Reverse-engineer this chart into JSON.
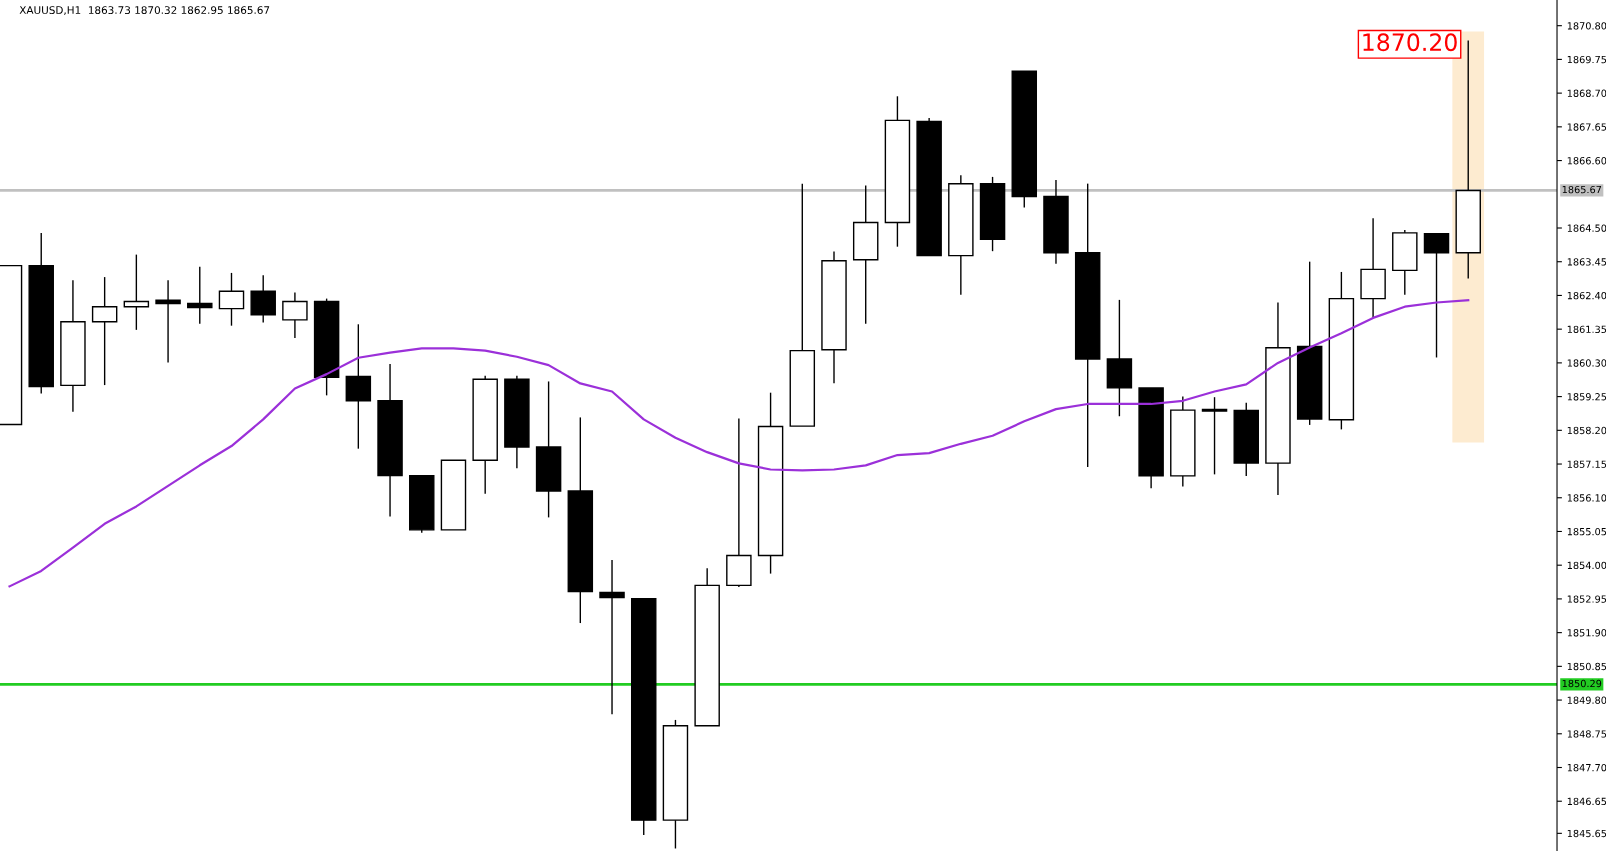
{
  "chart_data": {
    "type": "candlestick",
    "title": "XAUUSD,H1  1863.73 1870.32 1862.95 1865.67",
    "categories": [
      null,
      null,
      null,
      null,
      null,
      null,
      null,
      null,
      null,
      null,
      null,
      null,
      null,
      null,
      null,
      null,
      null,
      null,
      null,
      null,
      null,
      null,
      null,
      null,
      null,
      null,
      null,
      null,
      null,
      null,
      null,
      null,
      null,
      null,
      null,
      null,
      null,
      null,
      null,
      null,
      null,
      null,
      null,
      null,
      null,
      null,
      null
    ],
    "ohlc": [
      [
        1858.38,
        1863.33,
        1858.38,
        1863.33
      ],
      [
        1863.33,
        1864.32,
        1859.37,
        1859.56
      ],
      [
        1859.6,
        1862.85,
        1858.8,
        1861.58
      ],
      [
        1861.58,
        1862.95,
        1859.63,
        1862.05
      ],
      [
        1862.05,
        1863.65,
        1861.35,
        1862.21
      ],
      [
        1862.25,
        1862.85,
        1860.33,
        1862.15
      ],
      [
        1862.15,
        1863.27,
        1861.54,
        1862.02
      ],
      [
        1861.99,
        1863.08,
        1861.48,
        1862.53
      ],
      [
        1862.53,
        1863.01,
        1861.58,
        1861.8
      ],
      [
        1861.64,
        1862.47,
        1861.1,
        1862.21
      ],
      [
        1862.21,
        1862.28,
        1859.31,
        1859.85
      ],
      [
        1859.88,
        1861.48,
        1857.65,
        1859.12
      ],
      [
        1859.12,
        1860.24,
        1855.54,
        1856.79
      ],
      [
        1856.79,
        1856.79,
        1855.03,
        1855.1
      ],
      [
        1855.1,
        1857.27,
        1855.1,
        1857.27
      ],
      [
        1857.27,
        1859.88,
        1856.25,
        1859.79
      ],
      [
        1859.79,
        1859.88,
        1857.04,
        1857.68
      ],
      [
        1857.68,
        1859.7,
        1855.51,
        1856.31
      ],
      [
        1856.31,
        1858.58,
        1852.22,
        1853.18
      ],
      [
        1853.15,
        1854.14,
        1849.38,
        1852.99
      ],
      [
        1852.96,
        1852.96,
        1845.62,
        1846.06
      ],
      [
        1846.06,
        1849.16,
        1845.2,
        1849.0
      ],
      [
        1849.0,
        1853.88,
        1849.0,
        1853.37
      ],
      [
        1853.37,
        1858.55,
        1853.34,
        1854.3
      ],
      [
        1854.3,
        1859.35,
        1853.76,
        1858.32
      ],
      [
        1858.33,
        1865.86,
        1858.33,
        1860.68
      ],
      [
        1860.71,
        1863.75,
        1859.69,
        1863.48
      ],
      [
        1863.51,
        1865.8,
        1861.54,
        1864.67
      ],
      [
        1864.67,
        1868.58,
        1863.94,
        1867.85
      ],
      [
        1867.82,
        1867.9,
        1863.64,
        1863.64
      ],
      [
        1863.64,
        1866.12,
        1862.44,
        1865.88
      ],
      [
        1865.88,
        1866.07,
        1863.8,
        1864.15
      ],
      [
        1869.38,
        1869.38,
        1865.16,
        1865.48
      ],
      [
        1865.48,
        1865.97,
        1863.41,
        1863.73
      ],
      [
        1863.73,
        1865.86,
        1857.08,
        1860.42
      ],
      [
        1860.42,
        1862.24,
        1858.66,
        1859.52
      ],
      [
        1859.52,
        1859.52,
        1856.42,
        1856.78
      ],
      [
        1856.78,
        1859.23,
        1856.47,
        1858.83
      ],
      [
        1858.85,
        1859.21,
        1856.85,
        1858.8
      ],
      [
        1858.82,
        1859.04,
        1856.8,
        1857.18
      ],
      [
        1857.18,
        1862.16,
        1856.21,
        1860.77
      ],
      [
        1860.81,
        1863.43,
        1858.39,
        1858.55
      ],
      [
        1858.53,
        1863.11,
        1858.25,
        1862.3
      ],
      [
        1862.3,
        1864.78,
        1861.73,
        1863.21
      ],
      [
        1863.18,
        1864.42,
        1862.44,
        1864.35
      ],
      [
        1864.32,
        1864.32,
        1860.49,
        1863.73
      ],
      [
        1863.73,
        1870.32,
        1862.95,
        1865.67
      ]
    ],
    "series": [
      {
        "type": "line",
        "color": "#9b30d9",
        "values": [
          1853.34,
          1853.82,
          1854.55,
          1855.29,
          1855.83,
          1856.47,
          1857.11,
          1857.71,
          1858.54,
          1859.5,
          1859.95,
          1860.46,
          1860.62,
          1860.75,
          1860.75,
          1860.68,
          1860.49,
          1860.23,
          1859.66,
          1859.41,
          1858.54,
          1857.97,
          1857.52,
          1857.17,
          1856.98,
          1856.95,
          1856.98,
          1857.11,
          1857.43,
          1857.49,
          1857.78,
          1858.03,
          1858.48,
          1858.86,
          1859.02,
          1859.02,
          1859.02,
          1859.12,
          1859.41,
          1859.63,
          1860.3,
          1860.78,
          1861.22,
          1861.7,
          1862.05,
          1862.18,
          1862.25
        ]
      }
    ],
    "ylim": [
      1845.1,
      1871.6
    ],
    "yticks": [
      1845.65,
      1846.65,
      {
        "value": 1847.7,
        "label": "1847.70"
      },
      1848.75,
      {
        "value": 1849.8,
        "label": "1849.80"
      },
      1850.85,
      {
        "value": 1851.9,
        "label": "1851.90"
      },
      1852.95,
      {
        "value": 1854.0,
        "label": "1854.00"
      },
      1855.05,
      {
        "value": 1856.1,
        "label": "1856.10"
      },
      1857.15,
      {
        "value": 1858.2,
        "label": "1858.20"
      },
      1859.25,
      {
        "value": 1860.3,
        "label": "1860.30"
      },
      1861.35,
      {
        "value": 1862.4,
        "label": "1862.40"
      },
      1863.45,
      {
        "value": 1864.5,
        "label": "1864.50"
      },
      {
        "value": 1866.6,
        "label": "1866.60"
      },
      1867.65,
      {
        "value": 1868.7,
        "label": "1868.70"
      },
      1869.75,
      {
        "value": 1870.8,
        "label": "1870.80"
      }
    ],
    "ref_lines": [
      {
        "axis": "y",
        "value": 1865.67,
        "label": "1865.67",
        "color": "#c0c0c0"
      },
      {
        "axis": "y",
        "value": 1850.29,
        "label": "1850.29",
        "color": "#22cc22"
      }
    ],
    "annotations": [
      "1870.20"
    ],
    "grid": false
  }
}
